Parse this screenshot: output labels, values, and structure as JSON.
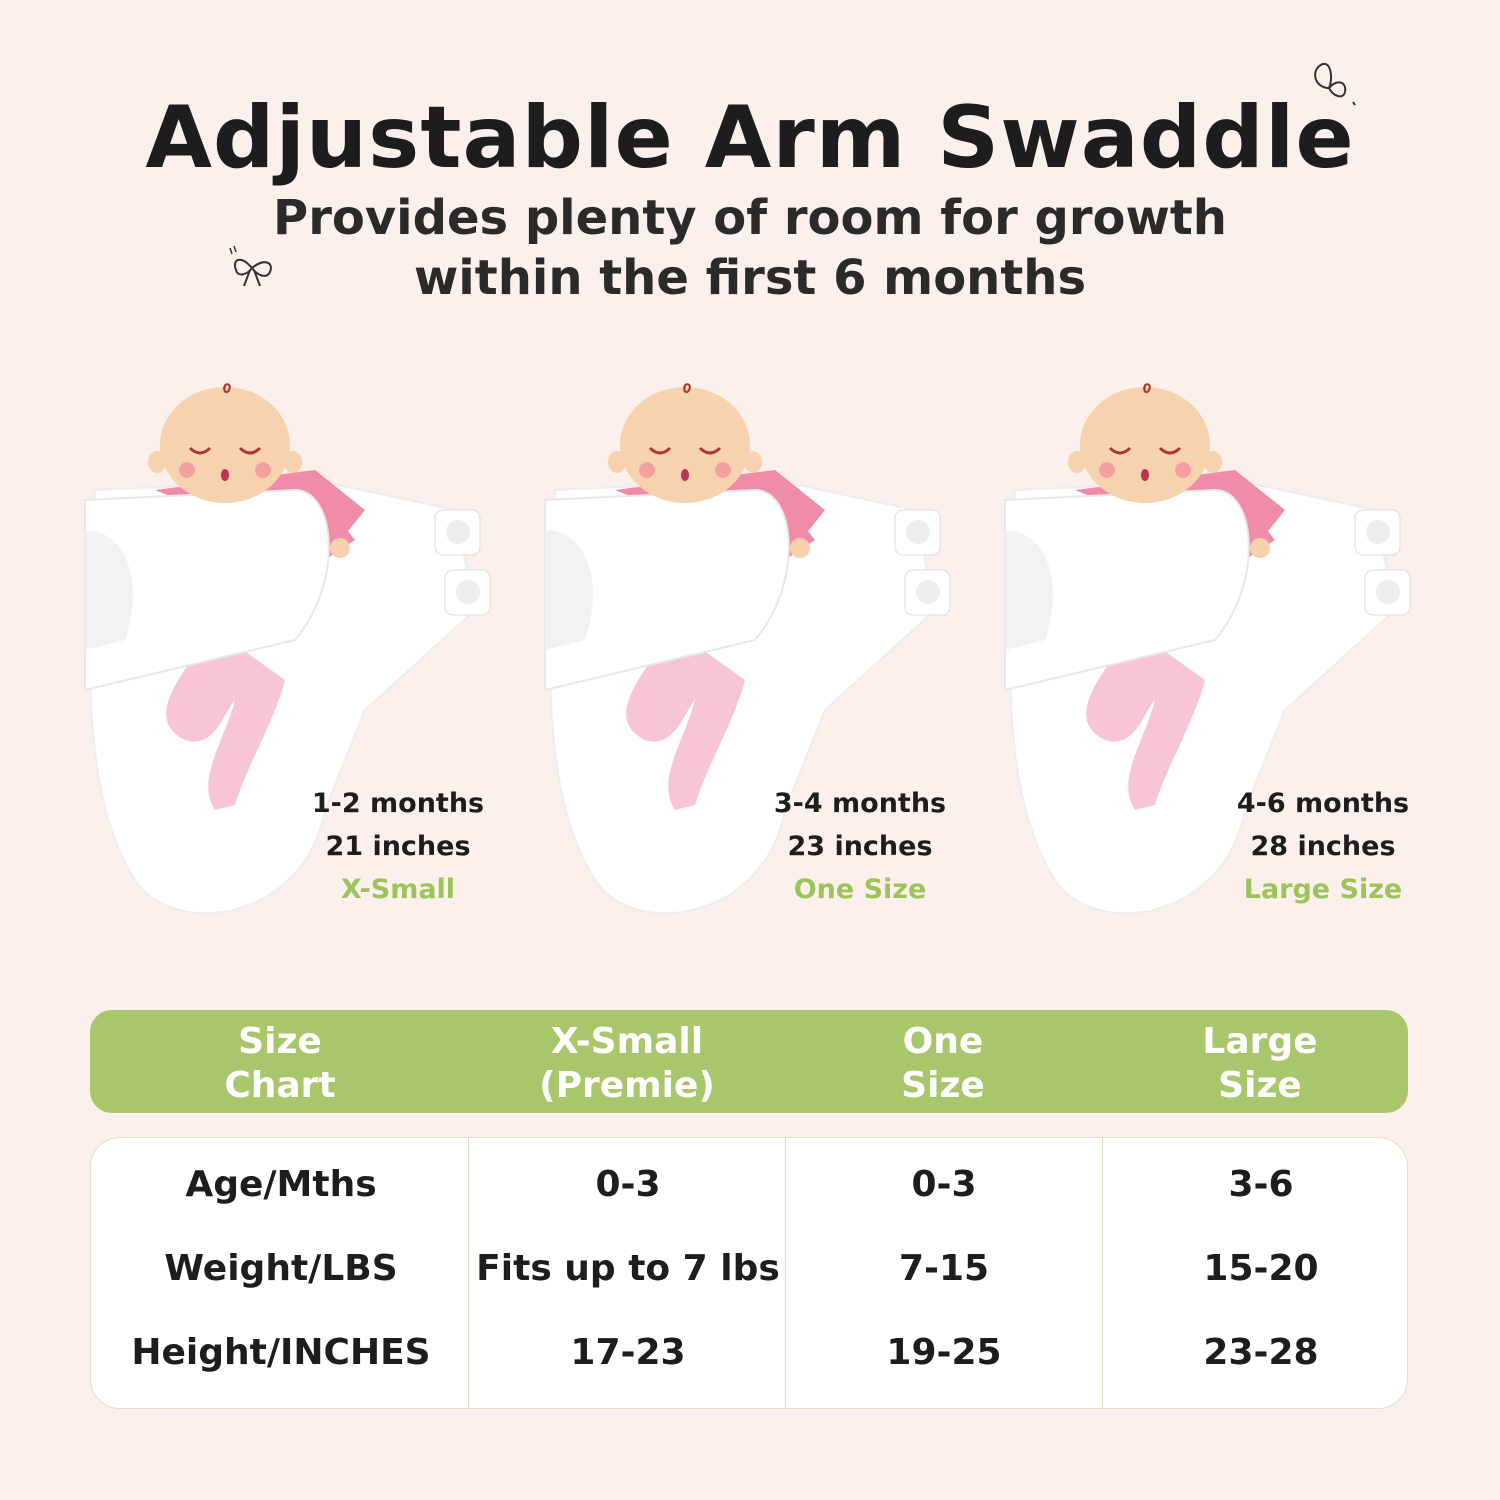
{
  "header": {
    "title": "Adjustable Arm Swaddle",
    "subtitle_line1": "Provides plenty of room for growth",
    "subtitle_line2": "within the first 6 months"
  },
  "colors": {
    "background": "#fbf0eb",
    "accent_green": "#aac66a",
    "size_text_green": "#9cc45a",
    "onesie_pink": "#f08ca8"
  },
  "icons": [
    "butterfly-icon",
    "bow-icon"
  ],
  "products": [
    {
      "age": "1-2 months",
      "length": "21 inches",
      "size": "X-Small"
    },
    {
      "age": "3-4 months",
      "length": "23 inches",
      "size": "One Size"
    },
    {
      "age": "4-6 months",
      "length": "28 inches",
      "size": "Large Size"
    }
  ],
  "size_chart": {
    "headers": [
      {
        "line1": "Size",
        "line2": "Chart"
      },
      {
        "line1": "X-Small",
        "line2": "(Premie)"
      },
      {
        "line1": "One",
        "line2": "Size"
      },
      {
        "line1": "Large",
        "line2": "Size"
      }
    ],
    "rows": [
      [
        "Age/Mths",
        "0-3",
        "0-3",
        "3-6"
      ],
      [
        "Weight/LBS",
        "Fits up to 7 lbs",
        "7-15",
        "15-20"
      ],
      [
        "Height/INCHES",
        "17-23",
        "19-25",
        "23-28"
      ]
    ]
  }
}
